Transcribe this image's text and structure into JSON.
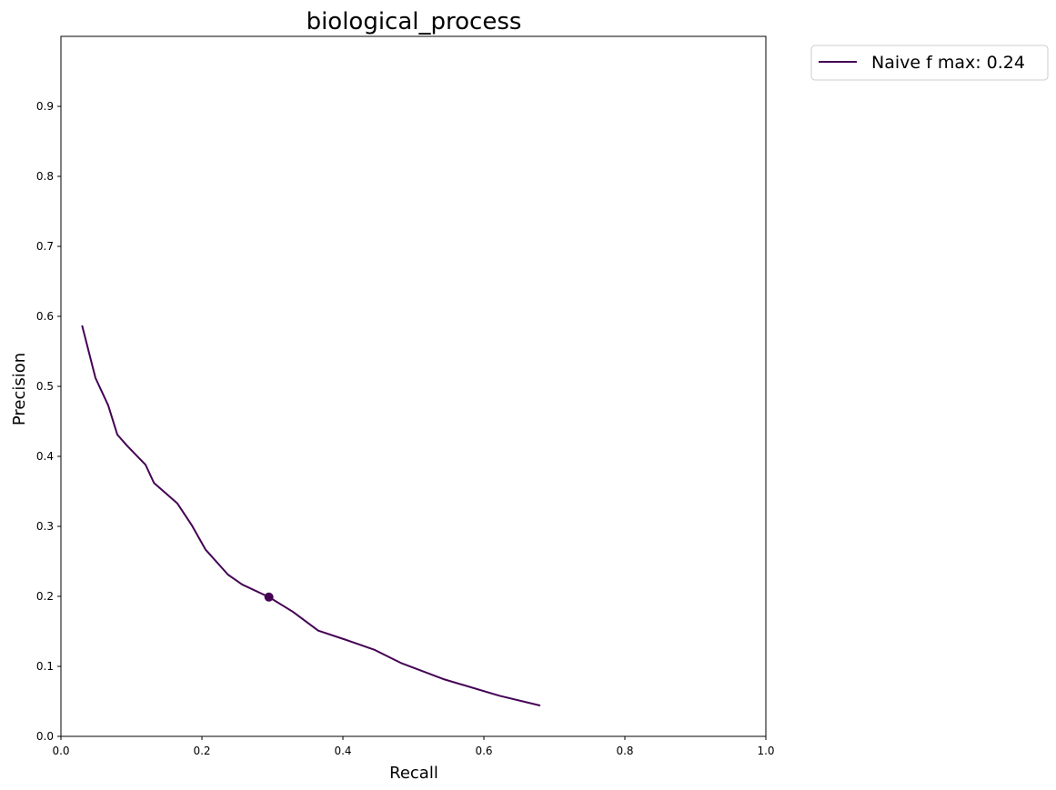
{
  "chart_data": {
    "type": "line",
    "title": "biological_process",
    "xlabel": "Recall",
    "ylabel": "Precision",
    "xlim": [
      0.0,
      1.0
    ],
    "ylim": [
      0.0,
      1.0
    ],
    "xticks": [
      "0.0",
      "0.2",
      "0.4",
      "0.6",
      "0.8",
      "1.0"
    ],
    "yticks": [
      "0.0",
      "0.1",
      "0.2",
      "0.3",
      "0.4",
      "0.5",
      "0.6",
      "0.7",
      "0.8",
      "0.9"
    ],
    "grid": false,
    "legend_position": "outside top-right",
    "series": [
      {
        "name": "Naive f max: 0.24",
        "color": "#440154",
        "x": [
          0.03,
          0.049,
          0.067,
          0.08,
          0.094,
          0.12,
          0.132,
          0.149,
          0.165,
          0.186,
          0.205,
          0.237,
          0.257,
          0.295,
          0.329,
          0.365,
          0.404,
          0.444,
          0.482,
          0.542,
          0.622,
          0.68
        ],
        "y": [
          0.587,
          0.512,
          0.473,
          0.431,
          0.415,
          0.388,
          0.362,
          0.347,
          0.333,
          0.301,
          0.267,
          0.231,
          0.217,
          0.199,
          0.178,
          0.151,
          0.138,
          0.124,
          0.105,
          0.082,
          0.058,
          0.044
        ]
      }
    ],
    "markers": [
      {
        "series": "Naive f max: 0.24",
        "x": 0.295,
        "y": 0.199,
        "color": "#440154"
      }
    ]
  }
}
